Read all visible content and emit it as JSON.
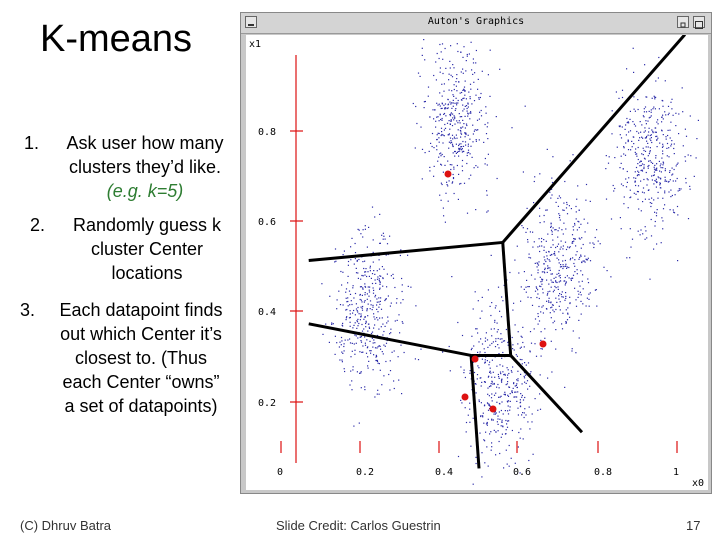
{
  "slide": {
    "title": "K-means",
    "steps": [
      {
        "num": "1.",
        "lines": [
          "Ask user how many",
          "clusters they’d like."
        ],
        "example": "(e.g. k=5)"
      },
      {
        "num": "2.",
        "lines": [
          "Randomly guess k",
          "cluster Center",
          "locations"
        ]
      },
      {
        "num": "3.",
        "lines": [
          "Each datapoint finds",
          "out which Center it’s",
          "closest to. (Thus",
          "each Center “owns”",
          "a set of datapoints)"
        ]
      }
    ],
    "footer_left": "(C) Dhruv Batra",
    "footer_center": "Slide Credit: Carlos Guestrin",
    "page_number": "17"
  },
  "window": {
    "title": "Auton's Graphics",
    "scale_label_y": "x1",
    "scale_label_x": "x0"
  },
  "chart_data": {
    "type": "scatter",
    "x_ticks": [
      "0",
      "0.2",
      "0.4",
      "0.6",
      "0.8",
      "1"
    ],
    "y_ticks": [
      "0.2",
      "0.4",
      "0.6",
      "0.8"
    ],
    "clusters": [
      {
        "cx": 0.44,
        "cy": 0.8
      },
      {
        "cx": 0.93,
        "cy": 0.72
      },
      {
        "cx": 0.7,
        "cy": 0.48
      },
      {
        "cx": 0.22,
        "cy": 0.38
      },
      {
        "cx": 0.55,
        "cy": 0.22
      }
    ],
    "centers": [
      {
        "x": 0.42,
        "y": 0.74
      },
      {
        "x": 0.66,
        "y": 0.36
      },
      {
        "x": 0.49,
        "y": 0.3
      },
      {
        "x": 0.47,
        "y": 0.22
      },
      {
        "x": 0.54,
        "y": 0.18
      }
    ],
    "boundaries": [
      [
        [
          0.07,
          0.49
        ],
        [
          0.56,
          0.53
        ]
      ],
      [
        [
          0.56,
          0.53
        ],
        [
          1.02,
          0.99
        ]
      ],
      [
        [
          0.56,
          0.53
        ],
        [
          0.58,
          0.28
        ]
      ],
      [
        [
          0.07,
          0.35
        ],
        [
          0.48,
          0.28
        ]
      ],
      [
        [
          0.48,
          0.28
        ],
        [
          0.58,
          0.28
        ]
      ],
      [
        [
          0.58,
          0.28
        ],
        [
          0.76,
          0.11
        ]
      ],
      [
        [
          0.48,
          0.28
        ],
        [
          0.5,
          0.03
        ]
      ]
    ],
    "colors": {
      "points": "#2a2aa8",
      "centers": "#dd1111",
      "axes": "#dd1111",
      "lines": "#000000"
    }
  }
}
